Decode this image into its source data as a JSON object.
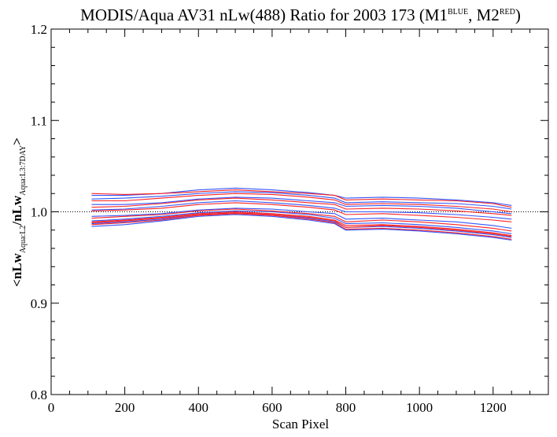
{
  "chart_data": {
    "type": "line",
    "title": {
      "prefix": "MODIS/Aqua AV31 nLw(488) Ratio for 2003 173 (M1",
      "sup1": "BLUE",
      "middle": ", M2",
      "sup2": "RED",
      "suffix": ")"
    },
    "xlabel": "Scan Pixel",
    "ylabel": {
      "open": "<nLw",
      "sub1": "Aqua:L2",
      "mid": "/nLw",
      "sub2": "Aqua:L3:7DAY",
      "close": ">"
    },
    "xlim": [
      0,
      1350
    ],
    "ylim": [
      0.8,
      1.2
    ],
    "xticks": [
      0,
      200,
      400,
      600,
      800,
      1000,
      1200
    ],
    "xtick_labels": [
      "0",
      "200",
      "400",
      "600",
      "800",
      "1000",
      "1200"
    ],
    "yticks": [
      0.8,
      0.9,
      1.0,
      1.1,
      1.2
    ],
    "ytick_labels": [
      "0.8",
      "0.9",
      "1.0",
      "1.1",
      "1.2"
    ],
    "reference_line": 1.0,
    "x": [
      110,
      200,
      300,
      400,
      500,
      600,
      700,
      770,
      800,
      900,
      1000,
      1100,
      1200,
      1250
    ],
    "series": [
      {
        "color": "#3355ff",
        "values": [
          1.018,
          1.018,
          1.02,
          1.024,
          1.026,
          1.024,
          1.021,
          1.018,
          1.015,
          1.016,
          1.015,
          1.013,
          1.01,
          1.007
        ]
      },
      {
        "color": "#ff2222",
        "values": [
          1.02,
          1.019,
          1.02,
          1.022,
          1.024,
          1.022,
          1.02,
          1.018,
          1.013,
          1.014,
          1.013,
          1.012,
          1.009,
          1.005
        ]
      },
      {
        "color": "#3355ff",
        "values": [
          1.014,
          1.015,
          1.017,
          1.02,
          1.022,
          1.021,
          1.018,
          1.015,
          1.01,
          1.011,
          1.01,
          1.009,
          1.006,
          1.003
        ]
      },
      {
        "color": "#ff2222",
        "values": [
          1.012,
          1.012,
          1.015,
          1.018,
          1.02,
          1.019,
          1.016,
          1.013,
          1.008,
          1.009,
          1.008,
          1.006,
          1.003,
          1.0
        ]
      },
      {
        "color": "#3355ff",
        "values": [
          1.008,
          1.008,
          1.01,
          1.014,
          1.016,
          1.015,
          1.012,
          1.01,
          1.006,
          1.007,
          1.006,
          1.004,
          1.0,
          0.998
        ]
      },
      {
        "color": "#ff2222",
        "values": [
          1.005,
          1.006,
          1.009,
          1.013,
          1.015,
          1.013,
          1.01,
          1.008,
          1.003,
          1.004,
          1.003,
          1.001,
          0.998,
          0.996
        ]
      },
      {
        "color": "#3355ff",
        "values": [
          1.002,
          1.003,
          1.006,
          1.01,
          1.012,
          1.01,
          1.007,
          1.004,
          1.0,
          1.0,
          0.999,
          0.997,
          0.994,
          0.992
        ]
      },
      {
        "color": "#ff2222",
        "values": [
          1.001,
          1.002,
          1.004,
          1.008,
          1.01,
          1.008,
          1.005,
          1.002,
          0.997,
          0.998,
          0.996,
          0.994,
          0.991,
          0.989
        ]
      },
      {
        "color": "#3355ff",
        "values": [
          0.995,
          0.996,
          0.998,
          1.002,
          1.004,
          1.003,
          1.0,
          0.998,
          0.992,
          0.993,
          0.991,
          0.989,
          0.985,
          0.982
        ]
      },
      {
        "color": "#ff2222",
        "values": [
          0.993,
          0.995,
          0.997,
          1.001,
          1.003,
          1.001,
          0.998,
          0.995,
          0.989,
          0.991,
          0.989,
          0.986,
          0.982,
          0.979
        ]
      },
      {
        "color": "#3355ff",
        "values": [
          0.99,
          0.992,
          0.995,
          0.999,
          1.001,
          1.0,
          0.997,
          0.993,
          0.987,
          0.988,
          0.986,
          0.983,
          0.979,
          0.976
        ]
      },
      {
        "color": "#ff2222",
        "values": [
          0.989,
          0.991,
          0.994,
          0.998,
          1.0,
          0.998,
          0.995,
          0.991,
          0.985,
          0.986,
          0.984,
          0.981,
          0.977,
          0.974
        ]
      },
      {
        "color": "#3355ff",
        "values": [
          0.987,
          0.989,
          0.992,
          0.997,
          0.999,
          0.997,
          0.993,
          0.989,
          0.983,
          0.984,
          0.982,
          0.979,
          0.975,
          0.972
        ]
      },
      {
        "color": "#ff2222",
        "values": [
          0.986,
          0.988,
          0.991,
          0.996,
          0.998,
          0.996,
          0.992,
          0.988,
          0.981,
          0.982,
          0.98,
          0.977,
          0.973,
          0.97
        ]
      },
      {
        "color": "#3355ff",
        "values": [
          0.984,
          0.986,
          0.99,
          0.995,
          0.997,
          0.995,
          0.991,
          0.987,
          0.98,
          0.981,
          0.979,
          0.976,
          0.972,
          0.969
        ]
      },
      {
        "color": "#ff2222",
        "values": [
          0.988,
          0.99,
          0.993,
          0.997,
          0.999,
          0.997,
          0.994,
          0.99,
          0.983,
          0.985,
          0.983,
          0.98,
          0.976,
          0.973
        ]
      }
    ]
  }
}
